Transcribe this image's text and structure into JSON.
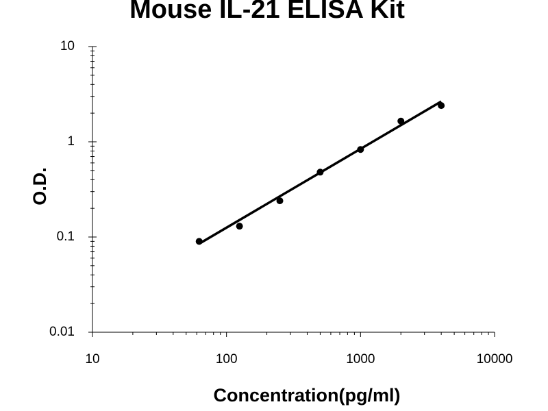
{
  "chart_data": {
    "type": "scatter",
    "title": "Mouse IL-21 ELISA Kit",
    "x_label": "Concentration(pg/ml)",
    "y_label": "O.D.",
    "x": [
      62.5,
      125,
      250,
      500,
      1000,
      2000,
      4000
    ],
    "values": [
      0.09,
      0.13,
      0.24,
      0.48,
      0.83,
      1.65,
      2.4
    ],
    "color": "#000000",
    "trendline": {
      "x": [
        62.5,
        4000
      ],
      "values": [
        0.085,
        2.65
      ],
      "color": "#000000"
    },
    "xlim": [
      10,
      10000
    ],
    "ylim": [
      0.01,
      10
    ],
    "xticks": [
      10,
      100,
      1000,
      10000
    ],
    "yticks": [
      0.01,
      0.1,
      1,
      10
    ],
    "xscale": "log",
    "yscale": "log",
    "grid": false
  }
}
